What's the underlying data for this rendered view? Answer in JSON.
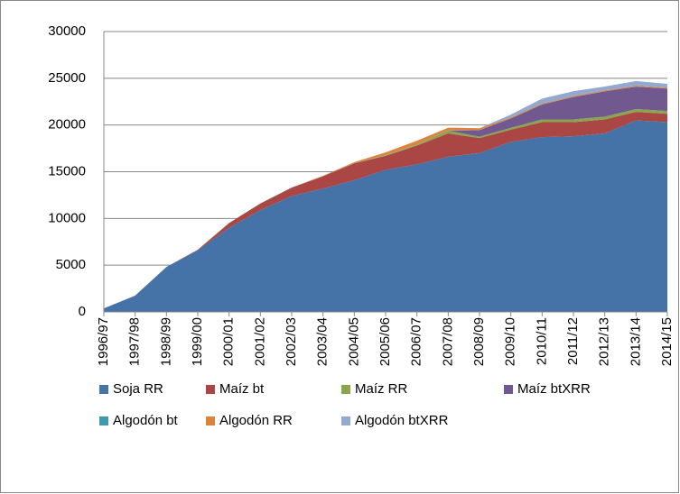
{
  "chart_data": {
    "type": "stacked_area",
    "categories": [
      "1996/97",
      "1997/98",
      "1998/99",
      "1999/00",
      "2000/01",
      "2001/02",
      "2002/03",
      "2003/04",
      "2004/05",
      "2005/06",
      "2006/07",
      "2007/08",
      "2008/09",
      "2009/10",
      "2010/11",
      "2011/12",
      "2012/13",
      "2013/14",
      "2014/15"
    ],
    "series": [
      {
        "name": "Soja RR",
        "color": "#4572a7",
        "values": [
          370,
          1750,
          4800,
          6600,
          9000,
          10900,
          12400,
          13200,
          14100,
          15200,
          15800,
          16600,
          17000,
          18200,
          18700,
          18800,
          19100,
          20500,
          20300
        ]
      },
      {
        "name": "Maíz bt",
        "color": "#aa4643",
        "values": [
          0,
          0,
          10,
          50,
          500,
          700,
          900,
          1300,
          1800,
          1500,
          2000,
          2500,
          1600,
          1300,
          1600,
          1500,
          1500,
          900,
          900
        ]
      },
      {
        "name": "Maíz RR",
        "color": "#89a54e",
        "values": [
          0,
          0,
          0,
          0,
          0,
          0,
          0,
          0,
          0,
          50,
          100,
          300,
          150,
          200,
          300,
          300,
          300,
          300,
          300
        ]
      },
      {
        "name": "Maíz btXRR",
        "color": "#71588f",
        "values": [
          0,
          0,
          0,
          0,
          0,
          0,
          0,
          0,
          0,
          0,
          0,
          0,
          700,
          1000,
          1600,
          2400,
          2700,
          2400,
          2400
        ]
      },
      {
        "name": "Algodón bt",
        "color": "#4198af",
        "values": [
          0,
          0,
          10,
          10,
          20,
          10,
          10,
          10,
          20,
          20,
          20,
          20,
          10,
          10,
          20,
          20,
          10,
          10,
          10
        ]
      },
      {
        "name": "Algodón RR",
        "color": "#db843d",
        "values": [
          0,
          0,
          0,
          0,
          0,
          0,
          0,
          50,
          100,
          300,
          400,
          300,
          200,
          100,
          100,
          100,
          100,
          100,
          100
        ]
      },
      {
        "name": "Algodón btXRR",
        "color": "#93a9cf",
        "values": [
          0,
          0,
          0,
          0,
          0,
          0,
          0,
          0,
          0,
          0,
          0,
          0,
          0,
          300,
          500,
          500,
          400,
          500,
          400
        ]
      }
    ],
    "ylim": [
      0,
      30000
    ],
    "yticks": [
      0,
      5000,
      10000,
      15000,
      20000,
      25000,
      30000
    ],
    "grid": true
  }
}
